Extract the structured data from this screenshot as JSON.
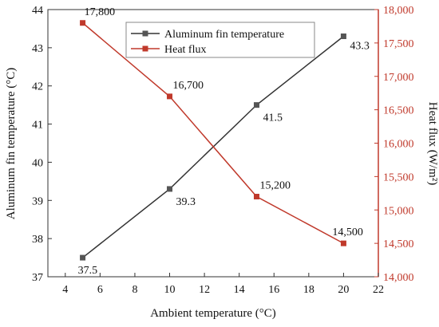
{
  "chart_data": {
    "type": "line",
    "xlabel": "Ambient temperature (°C)",
    "ylabel_left": "Aluminum fin temperature (°C)",
    "ylabel_right": "Heat flux (W/m²)",
    "xlim": [
      3,
      22
    ],
    "ylim_left": [
      37,
      44
    ],
    "ylim_right": [
      14000,
      18000
    ],
    "x_ticks": [
      "4",
      "6",
      "8",
      "10",
      "12",
      "14",
      "16",
      "18",
      "20",
      "22"
    ],
    "y_left_ticks": [
      "37",
      "38",
      "39",
      "40",
      "41",
      "42",
      "43",
      "44"
    ],
    "y_right_ticks": [
      "14,000",
      "14,500",
      "15,000",
      "15,500",
      "16,000",
      "16,500",
      "17,000",
      "17,500",
      "18,000"
    ],
    "grid": false,
    "legend_position": "top-right",
    "series": [
      {
        "name": "Aluminum fin temperature",
        "axis": "left",
        "color": "#333333",
        "marker": "square",
        "x": [
          5,
          10,
          15,
          20
        ],
        "values": [
          37.5,
          39.3,
          41.5,
          43.3
        ],
        "labels": [
          "37.5",
          "39.3",
          "41.5",
          "43.3"
        ]
      },
      {
        "name": "Heat flux",
        "axis": "right",
        "color": "#c0392b",
        "marker": "square",
        "x": [
          5,
          10,
          15,
          20
        ],
        "values": [
          17800,
          16700,
          15200,
          14500
        ],
        "labels": [
          "17,800",
          "16,700",
          "15,200",
          "14,500"
        ]
      }
    ]
  }
}
